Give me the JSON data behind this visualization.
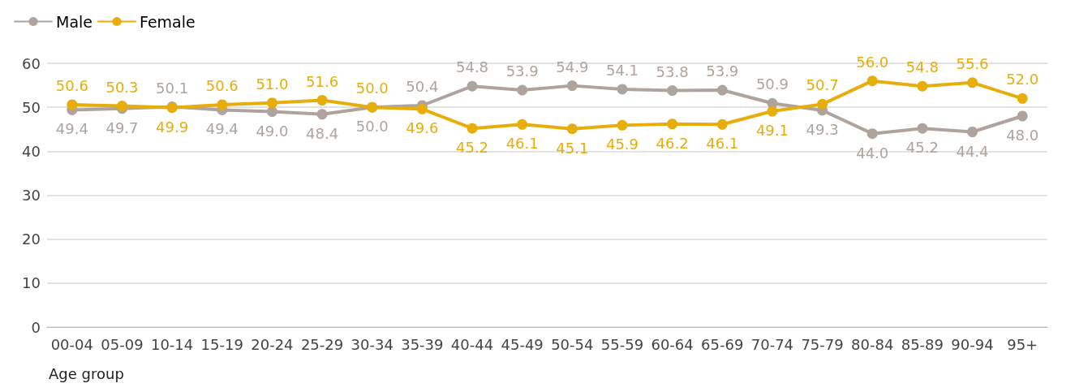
{
  "chart_data": {
    "type": "line",
    "xlabel": "Age group",
    "categories": [
      "00-04",
      "05-09",
      "10-14",
      "15-19",
      "20-24",
      "25-29",
      "30-34",
      "35-39",
      "40-44",
      "45-49",
      "50-54",
      "55-59",
      "60-64",
      "65-69",
      "70-74",
      "75-79",
      "80-84",
      "85-89",
      "90-94",
      "95+"
    ],
    "series": [
      {
        "name": "Male",
        "color": "#afa39d",
        "values": [
          49.4,
          49.7,
          50.1,
          49.4,
          49.0,
          48.4,
          50.0,
          50.4,
          54.8,
          53.9,
          54.9,
          54.1,
          53.8,
          53.9,
          50.9,
          49.3,
          44.0,
          45.2,
          44.4,
          48.0
        ],
        "value_labels": [
          "49.4",
          "49.7",
          "50.1",
          "49.4",
          "49.0",
          "48.4",
          "50.0",
          "50.4",
          "54.8",
          "53.9",
          "54.9",
          "54.1",
          "53.8",
          "53.9",
          "50.9",
          "49.3",
          "44.0",
          "45.2",
          "44.4",
          "48.0"
        ]
      },
      {
        "name": "Female",
        "color": "#e6ad0b",
        "values": [
          50.6,
          50.3,
          49.9,
          50.6,
          51.0,
          51.6,
          50.0,
          49.6,
          45.2,
          46.1,
          45.1,
          45.9,
          46.2,
          46.1,
          49.1,
          50.7,
          56.0,
          54.8,
          55.6,
          52.0
        ],
        "value_labels": [
          "50.6",
          "50.3",
          "49.9",
          "50.6",
          "51.0",
          "51.6",
          "50.0",
          "49.6",
          "45.2",
          "46.1",
          "45.1",
          "45.9",
          "46.2",
          "46.1",
          "49.1",
          "50.7",
          "56.0",
          "54.8",
          "55.6",
          "52.0"
        ]
      }
    ],
    "ylim": [
      0,
      60
    ],
    "yticks": [
      0,
      10,
      20,
      30,
      40,
      50,
      60
    ],
    "grid": "y",
    "legend": "top left",
    "marker": "circle",
    "line_style": "solid"
  }
}
